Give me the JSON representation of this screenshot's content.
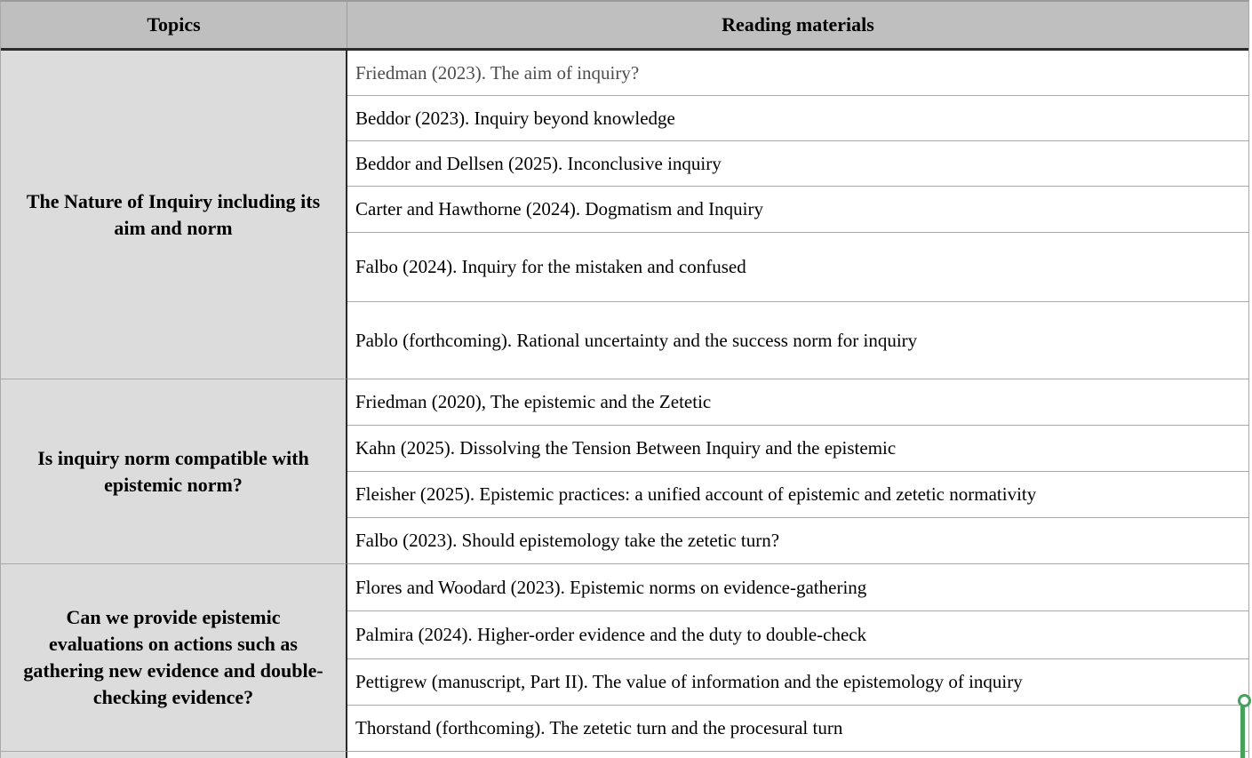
{
  "document": {
    "header": {
      "topics": "Topics",
      "readings": "Reading materials"
    },
    "groups": [
      {
        "topic": "The Nature of Inquiry including its aim and norm",
        "readings": [
          "Friedman (2023). The aim of inquiry?",
          "Beddor (2023). Inquiry beyond knowledge",
          "Beddor and Dellsen (2025). Inconclusive inquiry",
          "Carter and Hawthorne (2024). Dogmatism and Inquiry",
          "Falbo (2024). Inquiry for the mistaken and confused",
          "Pablo (forthcoming). Rational uncertainty and the success norm for inquiry"
        ]
      },
      {
        "topic": "Is inquiry norm compatible with epistemic norm?",
        "readings": [
          "Friedman (2020), The epistemic and the Zetetic",
          "Kahn (2025). Dissolving the Tension Between Inquiry and the epistemic",
          "Fleisher (2025). Epistemic practices: a unified account of epistemic and zetetic normativity",
          "Falbo (2023). Should epistemology take the zetetic turn?"
        ]
      },
      {
        "topic": "Can we provide epistemic evaluations on actions such as gathering new evidence and double-checking evidence?",
        "readings": [
          "Flores and Woodard (2023). Epistemic norms on evidence-gathering",
          "Palmira (2024). Higher-order evidence and the duty to double-check",
          "Pettigrew (manuscript, Part II). The value of information and the epistemology of inquiry",
          "Thorstand (forthcoming). The zetetic turn and the procesural turn"
        ]
      }
    ],
    "colors": {
      "header_bg": "#bfbfbf",
      "topic_bg": "#dcdcdc",
      "cell_bg": "#ffffff",
      "row_line": "#a9a9a9",
      "dark_line": "#2a2a2a",
      "text": "#000000",
      "muted_text": "#4d4d4d",
      "cursor_green": "#46a15d"
    },
    "cursor": {
      "type": "collaborator-selection-handle",
      "color": "#46a15d"
    }
  }
}
